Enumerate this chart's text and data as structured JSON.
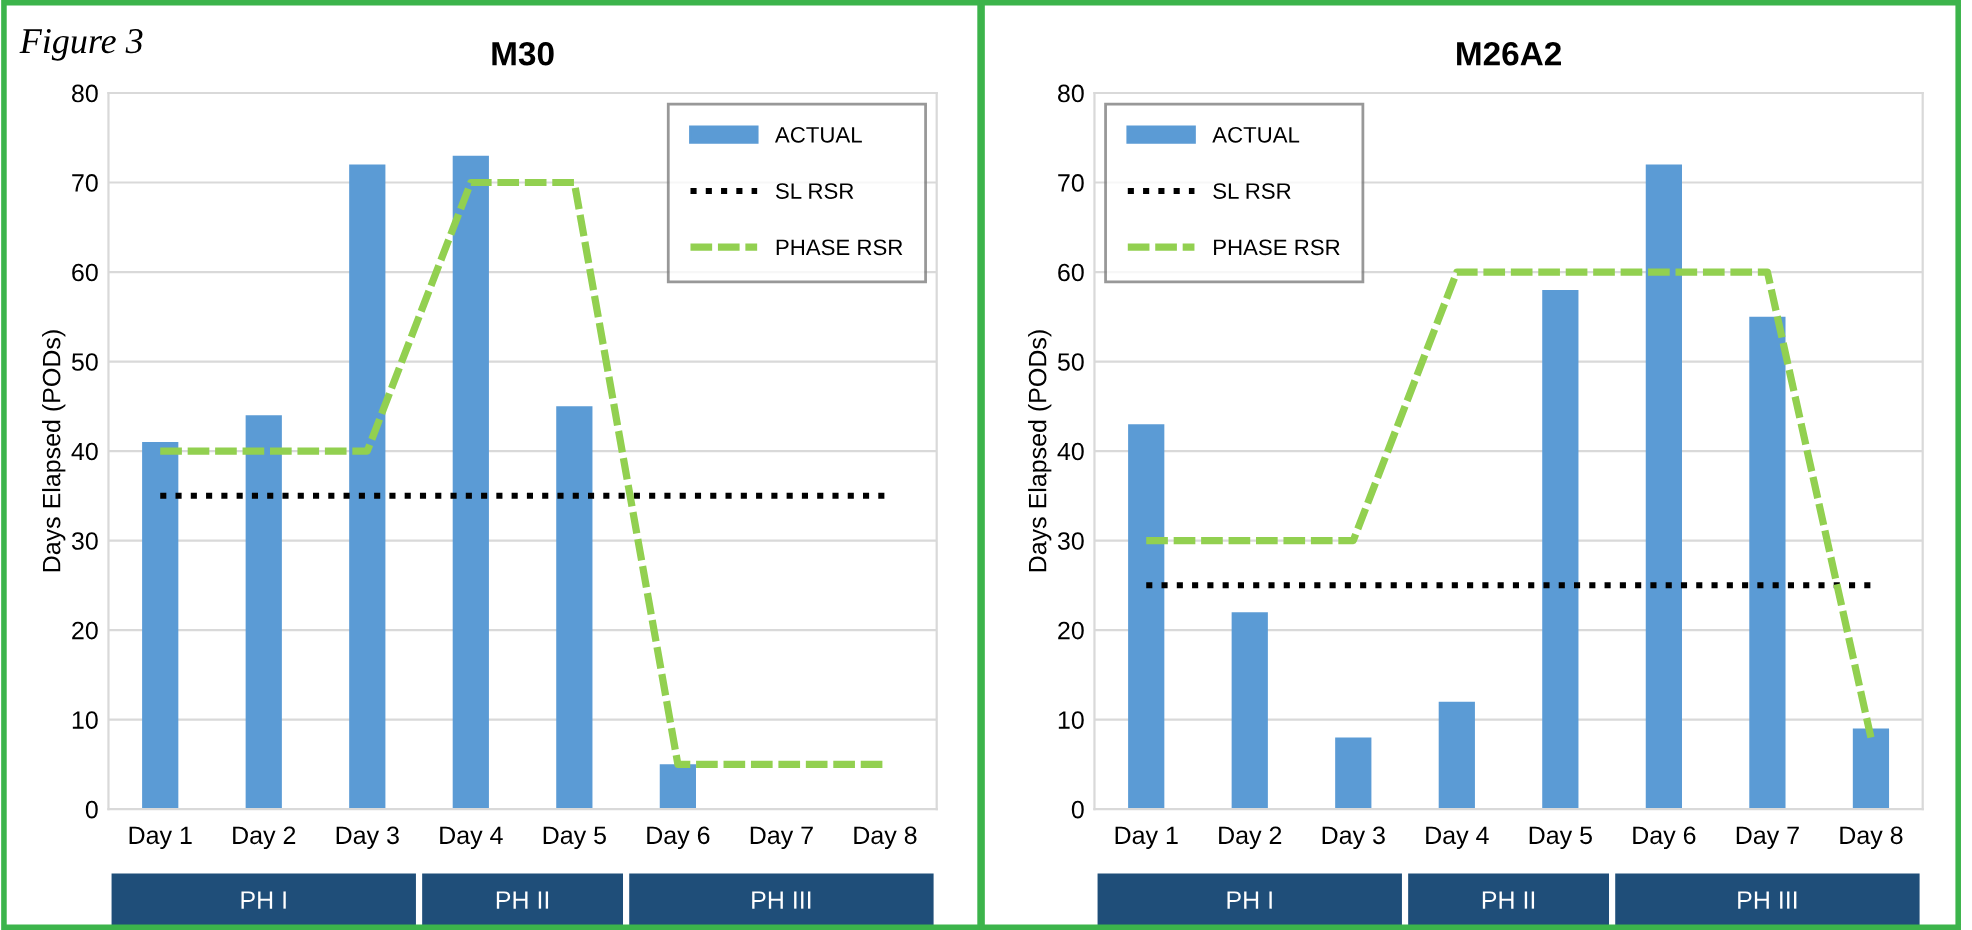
{
  "chart_data": [
    {
      "type": "bar",
      "title": "M30",
      "ylabel": "Days Elapsed (PODs)",
      "annotations": [
        "Figure 3",
        "PH I",
        "PH II",
        "PH III"
      ],
      "categories": [
        "Day 1",
        "Day 2",
        "Day 3",
        "Day 4",
        "Day 5",
        "Day 6",
        "Day 7",
        "Day 8"
      ],
      "series": [
        {
          "name": "ACTUAL",
          "color": "#5b9bd5",
          "values": [
            41,
            44,
            72,
            73,
            45,
            5,
            null,
            null
          ]
        },
        {
          "name": "SL RSR",
          "type": "line",
          "line_style": "dotted",
          "color": "#000000",
          "values": [
            35,
            35,
            35,
            35,
            35,
            35,
            35,
            35
          ]
        },
        {
          "name": "PHASE RSR",
          "type": "line",
          "line_style": "dashed",
          "color": "#92d050",
          "values": [
            40,
            40,
            40,
            70,
            70,
            5,
            5,
            5
          ]
        }
      ],
      "ylim": [
        0,
        80
      ],
      "yticks": [
        0,
        10,
        20,
        30,
        40,
        50,
        60,
        70,
        80
      ],
      "grid": "y",
      "legend": "top right"
    },
    {
      "type": "bar",
      "title": "M26A2",
      "ylabel": "Days Elapsed (PODs)",
      "annotations": [
        "PH I",
        "PH II",
        "PH III"
      ],
      "categories": [
        "Day 1",
        "Day 2",
        "Day 3",
        "Day 4",
        "Day 5",
        "Day 6",
        "Day 7",
        "Day 8"
      ],
      "series": [
        {
          "name": "ACTUAL",
          "color": "#5b9bd5",
          "values": [
            43,
            22,
            8,
            12,
            58,
            72,
            55,
            9
          ]
        },
        {
          "name": "SL RSR",
          "type": "line",
          "line_style": "dotted",
          "color": "#000000",
          "values": [
            25,
            25,
            25,
            25,
            25,
            25,
            25,
            25
          ]
        },
        {
          "name": "PHASE RSR",
          "type": "line",
          "line_style": "dashed",
          "color": "#92d050",
          "values": [
            30,
            30,
            30,
            60,
            60,
            60,
            60,
            8
          ]
        }
      ],
      "ylim": [
        0,
        80
      ],
      "yticks": [
        0,
        10,
        20,
        30,
        40,
        50,
        60,
        70,
        80
      ],
      "grid": "y",
      "legend": "top left"
    }
  ]
}
